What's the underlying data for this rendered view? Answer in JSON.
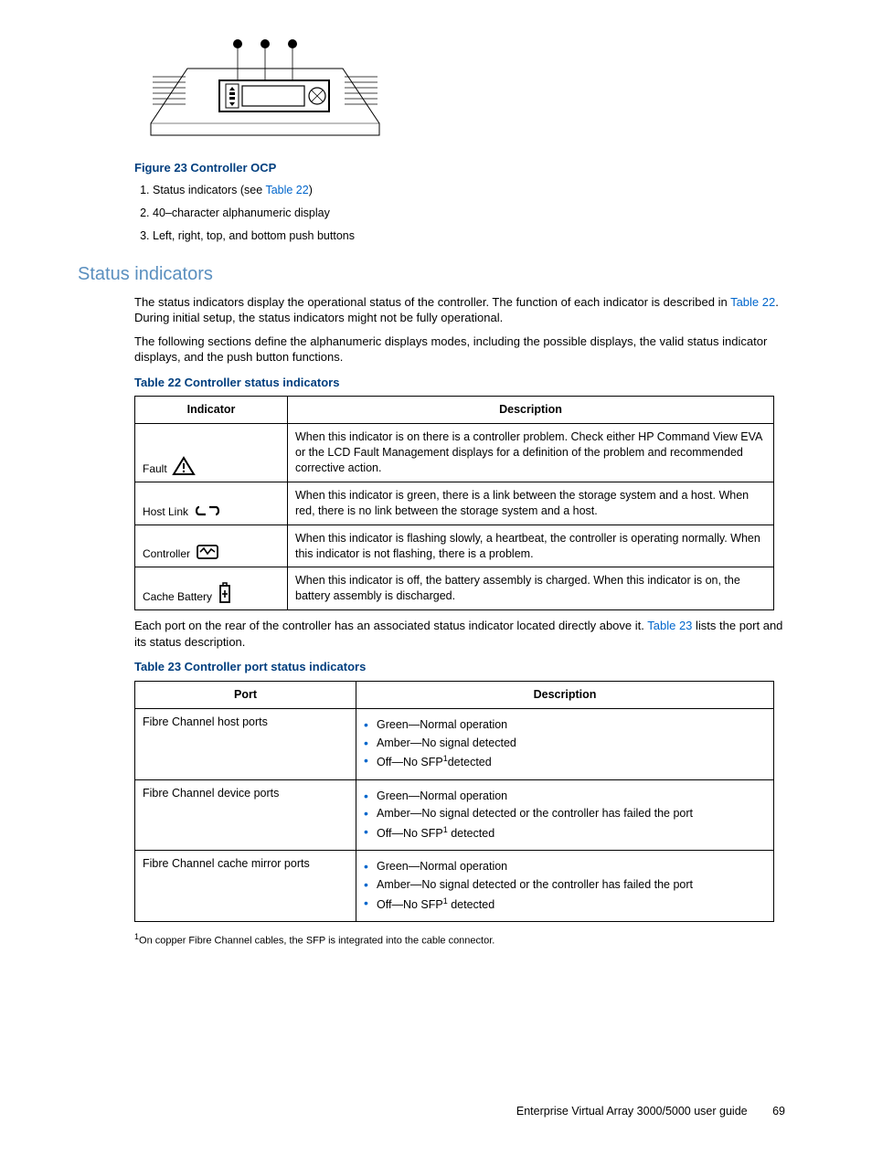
{
  "figure": {
    "caption": "Figure 23 Controller OCP",
    "items": [
      "Status indicators (see ",
      "40–character alphanumeric display",
      "Left, right, top, and bottom push buttons"
    ],
    "item1_ref": "Table 22",
    "item1_after": ")"
  },
  "section_heading": "Status indicators",
  "para1_a": "The status indicators display the operational status of the controller.  The function of each indicator is described in ",
  "para1_ref": "Table 22",
  "para1_b": ".  During initial setup, the status indicators might not be fully operational.",
  "para2": "The following sections define the alphanumeric displays modes, including the possible displays, the valid status indicator displays, and the push button functions.",
  "table22": {
    "caption": "Table 22 Controller status indicators",
    "col1": "Indicator",
    "col2": "Description",
    "rows": [
      {
        "label": "Fault",
        "desc": "When this indicator is on there is a controller problem.  Check either HP Command View EVA or the LCD Fault Management displays for a definition of the problem and recommended corrective action."
      },
      {
        "label": "Host Link",
        "desc": "When this indicator is green, there is a link between the storage system and a host. When red, there is no link between the storage system and a host."
      },
      {
        "label": "Controller",
        "desc": "When this indicator is flashing slowly, a heartbeat, the controller is operating normally.  When this indicator is not flashing, there is a problem."
      },
      {
        "label": "Cache Battery",
        "desc": "When this indicator is off, the battery assembly is charged. When this indicator is on, the battery assembly is discharged."
      }
    ]
  },
  "para3_a": "Each port on the rear of the controller has an associated status indicator located directly above it. ",
  "para3_ref": "Table 23",
  "para3_b": " lists the port and its status description.",
  "table23": {
    "caption": "Table 23 Controller port status indicators",
    "col1": "Port",
    "col2": "Description",
    "col1_width": 225,
    "rows": [
      {
        "port": "Fibre Channel host ports",
        "items": [
          "Green—Normal operation",
          "Amber—No signal detected",
          "Off—No SFP¹detected"
        ]
      },
      {
        "port": "Fibre Channel device ports",
        "items": [
          "Green—Normal operation",
          "Amber—No signal detected or the controller has failed the port",
          "Off—No SFP¹ detected"
        ]
      },
      {
        "port": "Fibre Channel cache mirror ports",
        "items": [
          "Green—Normal operation",
          "Amber—No signal detected or the controller has failed the port",
          "Off—No SFP¹ detected"
        ]
      }
    ]
  },
  "footnote": "¹On copper Fibre Channel cables, the SFP is integrated into the cable connector.",
  "footer_text": "Enterprise Virtual Array 3000/5000 user guide",
  "page_number": "69",
  "colors": {
    "caption_blue": "#003e7e",
    "link_blue": "#0066cc",
    "heading_blue": "#5a8fbf"
  }
}
